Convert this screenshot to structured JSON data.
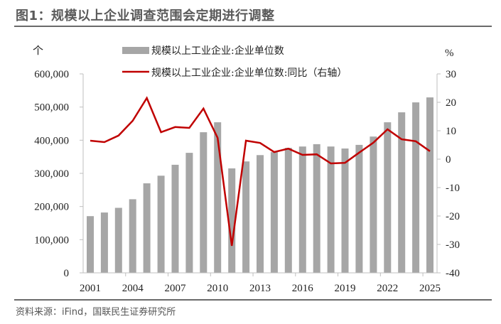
{
  "figure": {
    "title": "图1：规模以上企业调查范围会定期进行调整",
    "source": "资料来源：iFind，国联民生证券研究所"
  },
  "chart_data": {
    "type": "bar+line",
    "title": "图1：规模以上企业调查范围会定期进行调整",
    "x": [
      2001,
      2002,
      2003,
      2004,
      2005,
      2006,
      2007,
      2008,
      2009,
      2010,
      2011,
      2012,
      2013,
      2014,
      2015,
      2016,
      2017,
      2018,
      2019,
      2020,
      2021,
      2022,
      2023,
      2024,
      2025
    ],
    "x_tick_labels": [
      "2001",
      "2004",
      "2007",
      "2010",
      "2013",
      "2016",
      "2019",
      "2022",
      "2025"
    ],
    "left_axis": {
      "unit": "个",
      "ylim": [
        0,
        600000
      ],
      "tick_labels": [
        "0",
        "100,000",
        "200,000",
        "300,000",
        "400,000",
        "500,000",
        "600,000"
      ],
      "tick_values": [
        0,
        100000,
        200000,
        300000,
        400000,
        500000,
        600000
      ]
    },
    "right_axis": {
      "unit": "%",
      "ylim": [
        -40,
        30
      ],
      "tick_labels": [
        "-40",
        "-30",
        "-20",
        "-10",
        "0",
        "10",
        "20",
        "30"
      ],
      "tick_values": [
        -40,
        -30,
        -20,
        -10,
        0,
        10,
        20,
        30
      ]
    },
    "series": [
      {
        "name": "规模以上工业企业:企业单位数",
        "type": "bar",
        "axis": "left",
        "color": "#a6a6a6",
        "values": [
          171000,
          182000,
          196000,
          222000,
          270000,
          293000,
          326000,
          362000,
          424000,
          454000,
          315000,
          336000,
          355000,
          364000,
          377000,
          381000,
          388000,
          381000,
          375000,
          386000,
          411000,
          454000,
          484000,
          514000,
          529000
        ]
      },
      {
        "name": "规模以上工业企业:企业单位数:同比（右轴）",
        "type": "line",
        "axis": "right",
        "color": "#c00000",
        "values": [
          6.5,
          6.0,
          8.3,
          13.5,
          21.5,
          9.5,
          11.3,
          11.0,
          17.8,
          7.5,
          -30.5,
          6.5,
          5.7,
          2.5,
          3.7,
          1.5,
          1.7,
          -1.5,
          -1.3,
          2.3,
          5.8,
          10.5,
          7.0,
          6.3,
          2.8
        ]
      }
    ],
    "grid": false,
    "legend": "top-center"
  }
}
